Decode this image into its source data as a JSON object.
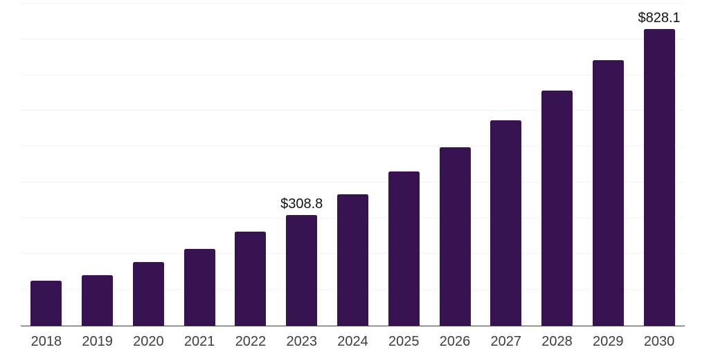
{
  "chart_data": {
    "type": "bar",
    "title": "",
    "xlabel": "",
    "ylabel": "",
    "categories": [
      "2018",
      "2019",
      "2020",
      "2021",
      "2022",
      "2023",
      "2024",
      "2025",
      "2026",
      "2027",
      "2028",
      "2029",
      "2030"
    ],
    "values": [
      125,
      141,
      177,
      215,
      263,
      308.8,
      367,
      430,
      498,
      574,
      656,
      742,
      828.1
    ],
    "value_labels": [
      "",
      "",
      "",
      "",
      "",
      "$308.8",
      "",
      "",
      "",
      "",
      "",
      "",
      "$828.1"
    ],
    "ylim": [
      0,
      900
    ],
    "gridline_step": 100,
    "grid": "horizontal-only",
    "legend": "none",
    "colors": {
      "bar": "#371351",
      "gridline": "#f3f3f3",
      "axis_line": "#3b3b3b",
      "tick_label": "#3d3d3d",
      "value_label": "#111111",
      "background": "#ffffff"
    }
  }
}
